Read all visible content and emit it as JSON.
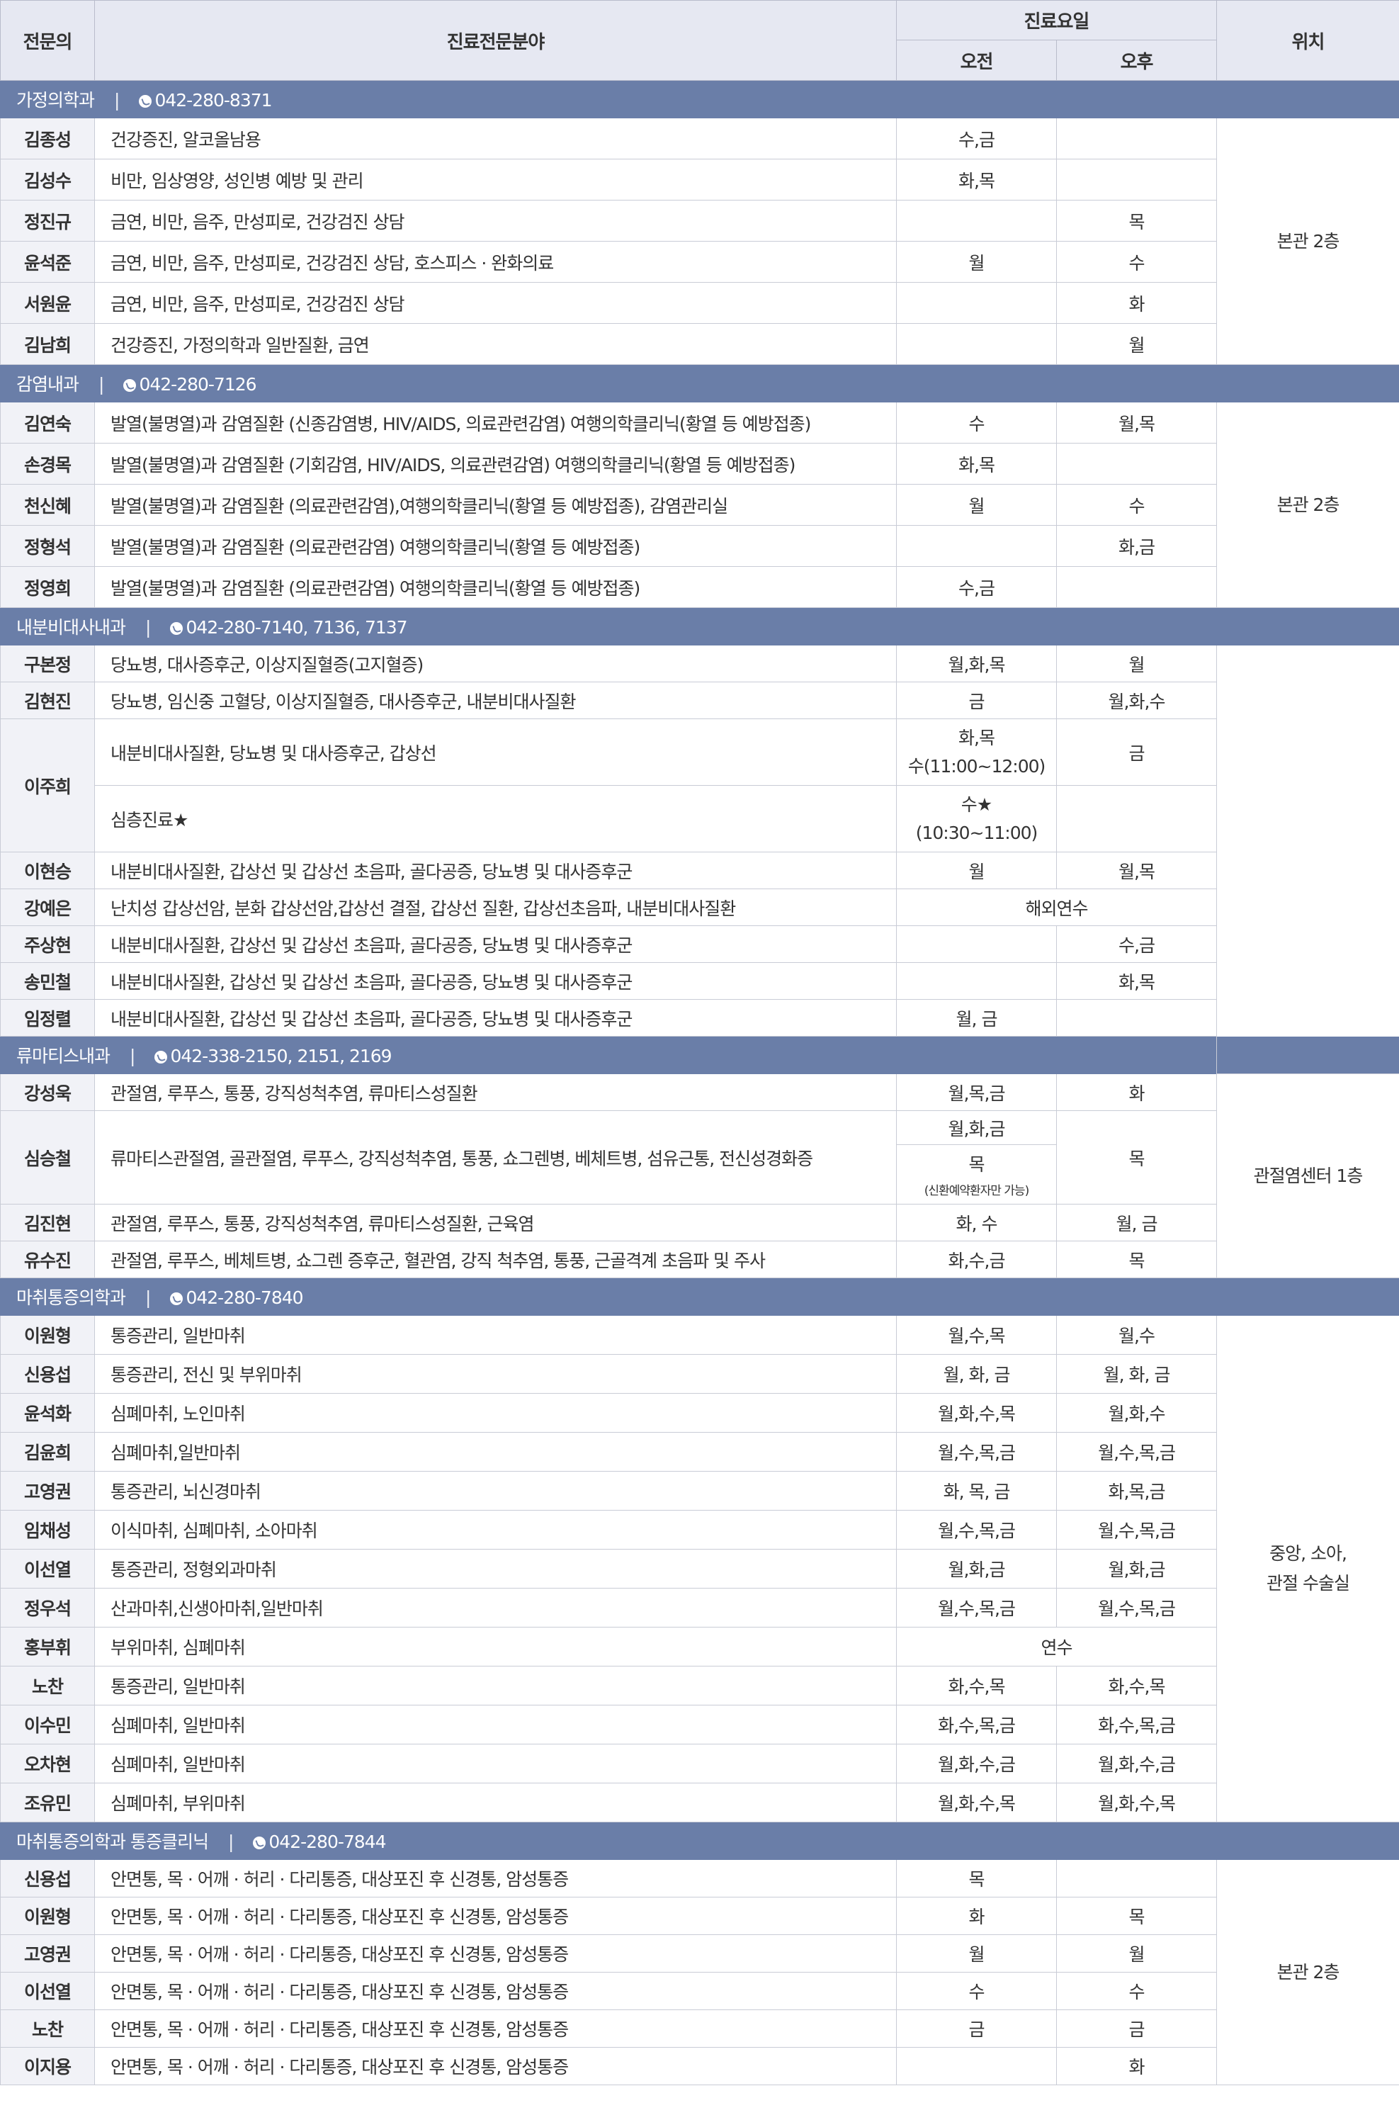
{
  "header": {
    "doctor": "전문의",
    "specialty": "진료전문분야",
    "schedule": "진료요일",
    "am": "오전",
    "pm": "오후",
    "location": "위치"
  },
  "sections": {
    "family": {
      "name": "가정의학과",
      "phone": "042-280-8371",
      "location": "본관 2층",
      "doctors": [
        {
          "name": "김종성",
          "spec": "건강증진, 알코올남용",
          "am": "수,금",
          "pm": ""
        },
        {
          "name": "김성수",
          "spec": "비만, 임상영양, 성인병 예방 및 관리",
          "am": "화,목",
          "pm": ""
        },
        {
          "name": "정진규",
          "spec": "금연, 비만, 음주, 만성피로, 건강검진 상담",
          "am": "",
          "pm": "목"
        },
        {
          "name": "윤석준",
          "spec": "금연, 비만, 음주, 만성피로, 건강검진 상담, 호스피스 · 완화의료",
          "am": "월",
          "pm": "수"
        },
        {
          "name": "서원윤",
          "spec": "금연, 비만, 음주, 만성피로, 건강검진 상담",
          "am": "",
          "pm": "화"
        },
        {
          "name": "김남희",
          "spec": "건강증진, 가정의학과 일반질환, 금연",
          "am": "",
          "pm": "월"
        }
      ]
    },
    "infection": {
      "name": "감염내과",
      "phone": "042-280-7126",
      "location": "본관 2층",
      "doctors": [
        {
          "name": "김연숙",
          "spec": "발열(불명열)과 감염질환 (신종감염병, HIV/AIDS, 의료관련감염) 여행의학클리닉(황열 등 예방접종)",
          "am": "수",
          "pm": "월,목"
        },
        {
          "name": "손경목",
          "spec": "발열(불명열)과 감염질환 (기회감염, HIV/AIDS, 의료관련감염) 여행의학클리닉(황열 등 예방접종)",
          "am": "화,목",
          "pm": ""
        },
        {
          "name": "천신혜",
          "spec": "발열(불명열)과 감염질환 (의료관련감염),여행의학클리닉(황열 등 예방접종), 감염관리실",
          "am": "월",
          "pm": "수"
        },
        {
          "name": "정형석",
          "spec": "발열(불명열)과 감염질환 (의료관련감염) 여행의학클리닉(황열 등 예방접종)",
          "am": "",
          "pm": "화,금"
        },
        {
          "name": "정영희",
          "spec": "발열(불명열)과 감염질환 (의료관련감염) 여행의학클리닉(황열 등 예방접종)",
          "am": "수,금",
          "pm": ""
        }
      ]
    },
    "endo": {
      "name": "내분비대사내과",
      "phone": "042-280-7140, 7136, 7137",
      "doctors": [
        {
          "name": "구본정",
          "spec": "당뇨병, 대사증후군, 이상지질혈증(고지혈증)",
          "am": "월,화,목",
          "pm": "월"
        },
        {
          "name": "김현진",
          "spec": "당뇨병, 임신중 고혈당, 이상지질혈증, 대사증후군, 내분비대사질환",
          "am": "금",
          "pm": "월,화,수"
        },
        {
          "name": "이주희",
          "spec": "내분비대사질환,  당뇨병 및 대사증후군, 갑상선",
          "am": "화,목",
          "am2": "수(11:00~12:00)",
          "pm": "금",
          "spec2": "심층진료★",
          "am3": "수★",
          "am4": "(10:30~11:00)",
          "pm2": ""
        },
        {
          "name": "이현승",
          "spec": "내분비대사질환, 갑상선 및 갑상선 초음파, 골다공증, 당뇨병 및 대사증후군",
          "am": "월",
          "pm": "월,목"
        },
        {
          "name": "강예은",
          "spec": "난치성 갑상선암, 분화 갑상선암,갑상선 결절, 갑상선 질환, 갑상선초음파, 내분비대사질환",
          "both": "해외연수"
        },
        {
          "name": "주상현",
          "spec": "내분비대사질환, 갑상선 및 갑상선 초음파, 골다공증, 당뇨병 및 대사증후군",
          "am": "",
          "pm": "수,금"
        },
        {
          "name": "송민철",
          "spec": "내분비대사질환, 갑상선 및 갑상선 초음파, 골다공증, 당뇨병 및 대사증후군",
          "am": "",
          "pm": "화,목"
        },
        {
          "name": "임정렬",
          "spec": "내분비대사질환, 갑상선 및 갑상선 초음파, 골다공증, 당뇨병 및 대사증후군",
          "am": "월, 금",
          "pm": ""
        }
      ]
    },
    "rheum": {
      "name": "류마티스내과",
      "phone": "042-338-2150, 2151, 2169",
      "location": "관절염센터 1층",
      "doctors": [
        {
          "name": "강성욱",
          "spec": "관절염, 루푸스, 통풍, 강직성척추염, 류마티스성질환",
          "am": "월,목,금",
          "pm": "화"
        },
        {
          "name": "심승철",
          "spec": "류마티스관절염, 골관절염, 루푸스, 강직성척추염, 통풍, 쇼그렌병, 베체트병, 섬유근통, 전신성경화증",
          "am": "월,화,금",
          "am2": "목",
          "am3": "(신환예약환자만 가능)",
          "pm": "목"
        },
        {
          "name": "김진현",
          "spec": "관절염, 루푸스, 통풍, 강직성척추염, 류마티스성질환, 근육염",
          "am": "화, 수",
          "pm": "월, 금"
        },
        {
          "name": "유수진",
          "spec": "관절염, 루푸스, 베체트병, 쇼그렌 증후군, 혈관염, 강직 척추염, 통풍, 근골격계 초음파 및 주사",
          "am": "화,수,금",
          "pm": "목"
        }
      ]
    },
    "anes": {
      "name": "마취통증의학과",
      "phone": "042-280-7840",
      "location1": "중앙, 소아,",
      "location2": "관절 수술실",
      "doctors": [
        {
          "name": "이원형",
          "spec": "통증관리, 일반마취",
          "am": "월,수,목",
          "pm": "월,수"
        },
        {
          "name": "신용섭",
          "spec": "통증관리, 전신 및 부위마취",
          "am": "월, 화, 금",
          "pm": "월, 화, 금"
        },
        {
          "name": "윤석화",
          "spec": "심폐마취, 노인마취",
          "am": "월,화,수,목",
          "pm": "월,화,수"
        },
        {
          "name": "김윤희",
          "spec": "심폐마취,일반마취",
          "am": "월,수,목,금",
          "pm": "월,수,목,금"
        },
        {
          "name": "고영권",
          "spec": "통증관리, 뇌신경마취",
          "am": "화, 목, 금",
          "pm": "화,목,금"
        },
        {
          "name": "임채성",
          "spec": "이식마취, 심폐마취, 소아마취",
          "am": "월,수,목,금",
          "pm": "월,수,목,금"
        },
        {
          "name": "이선열",
          "spec": "통증관리, 정형외과마취",
          "am": "월,화,금",
          "pm": "월,화,금"
        },
        {
          "name": "정우석",
          "spec": "산과마취,신생아마취,일반마취",
          "am": "월,수,목,금",
          "pm": "월,수,목,금"
        },
        {
          "name": "홍부휘",
          "spec": "부위마취, 심폐마취",
          "both": "연수"
        },
        {
          "name": "노찬",
          "spec": "통증관리, 일반마취",
          "am": "화,수,목",
          "pm": "화,수,목"
        },
        {
          "name": "이수민",
          "spec": "심폐마취, 일반마취",
          "am": "화,수,목,금",
          "pm": "화,수,목,금"
        },
        {
          "name": "오차현",
          "spec": "심폐마취, 일반마취",
          "am": "월,화,수,금",
          "pm": "월,화,수,금"
        },
        {
          "name": "조유민",
          "spec": "심폐마취, 부위마취",
          "am": "월,화,수,목",
          "pm": "월,화,수,목"
        }
      ]
    },
    "pain": {
      "name": "마취통증의학과 통증클리닉",
      "phone": "042-280-7844",
      "location": "본관 2층",
      "doctors": [
        {
          "name": "신용섭",
          "spec": "안면통, 목 · 어깨 · 허리 · 다리통증, 대상포진 후 신경통, 암성통증",
          "am": "목",
          "pm": ""
        },
        {
          "name": "이원형",
          "spec": "안면통, 목 · 어깨 · 허리 · 다리통증, 대상포진 후 신경통, 암성통증",
          "am": "화",
          "pm": "목"
        },
        {
          "name": "고영권",
          "spec": "안면통, 목 · 어깨 · 허리 · 다리통증, 대상포진 후 신경통, 암성통증",
          "am": "월",
          "pm": "월"
        },
        {
          "name": "이선열",
          "spec": "안면통, 목 · 어깨 · 허리 · 다리통증, 대상포진 후 신경통, 암성통증",
          "am": "수",
          "pm": "수"
        },
        {
          "name": "노찬",
          "spec": "안면통, 목 · 어깨 · 허리 · 다리통증, 대상포진 후 신경통, 암성통증",
          "am": "금",
          "pm": "금"
        },
        {
          "name": "이지용",
          "spec": "안면통, 목 · 어깨 · 허리 · 다리통증, 대상포진 후 신경통, 암성통증",
          "am": "",
          "pm": "화"
        }
      ]
    }
  },
  "colors": {
    "section_bar": "#6a7ea8",
    "header_bg": "#e6e8f2",
    "name_bg": "#f1f2f7",
    "border": "#c9ccd6"
  }
}
